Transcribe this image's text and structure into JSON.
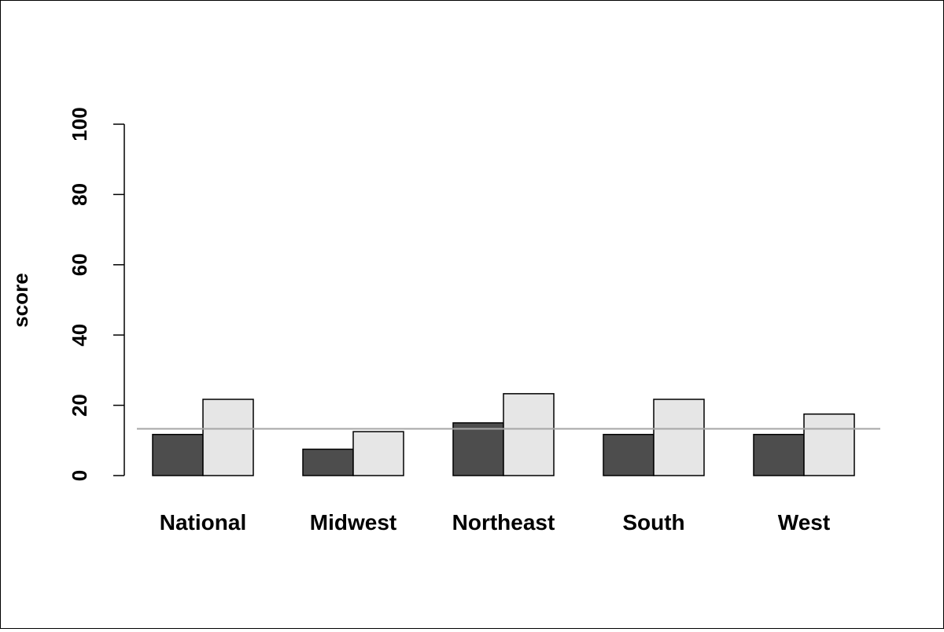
{
  "chart_data": {
    "type": "bar",
    "title": "",
    "xlabel": "",
    "ylabel": "score",
    "ylim": [
      0,
      100
    ],
    "yticks": [
      "0",
      "20",
      "40",
      "60",
      "80",
      "100"
    ],
    "categories": [
      "National",
      "Midwest",
      "Northeast",
      "South",
      "West"
    ],
    "series": [
      {
        "values": [
          11.7,
          7.5,
          15.0,
          11.7,
          11.7
        ],
        "color": "#4d4d4d"
      },
      {
        "values": [
          21.7,
          12.5,
          23.3,
          21.7,
          17.5
        ],
        "color": "#e6e6e6"
      }
    ],
    "reference_line": {
      "value": 13.3,
      "color": "#a6a6a6"
    },
    "grid": false,
    "legend": "none"
  }
}
